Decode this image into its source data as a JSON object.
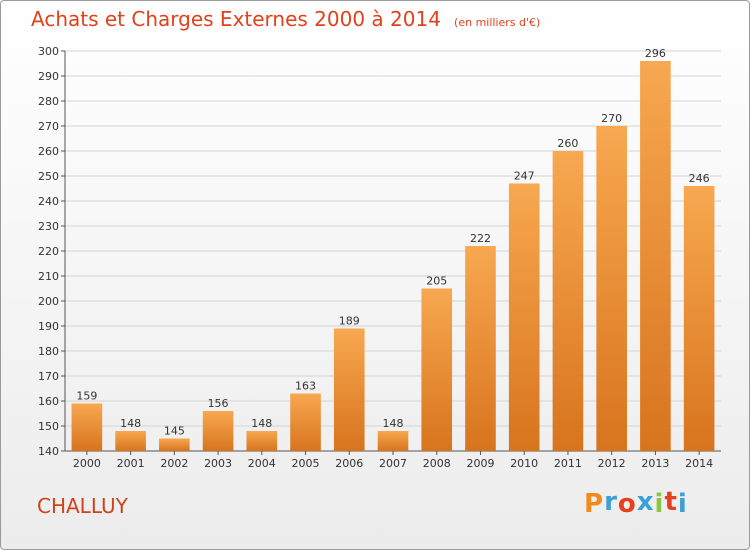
{
  "chart_data": {
    "type": "bar",
    "title": "Achats et Charges Externes 2000 à 2014",
    "subtitle": "(en milliers d'€)",
    "categories": [
      "2000",
      "2001",
      "2002",
      "2003",
      "2004",
      "2005",
      "2006",
      "2007",
      "2008",
      "2009",
      "2010",
      "2011",
      "2012",
      "2013",
      "2014"
    ],
    "values": [
      159,
      148,
      145,
      156,
      148,
      163,
      189,
      148,
      205,
      222,
      247,
      260,
      270,
      296,
      246
    ],
    "ylim": [
      140,
      300
    ],
    "ytick_step": 10,
    "grid": true,
    "bar_color_light": "#f7a850",
    "bar_color_dark": "#d8741e"
  },
  "place_name": "CHALLUY",
  "logo": {
    "text": "Proxiti",
    "colors": [
      "#f08a1c",
      "#3aa0d8",
      "#e8401c",
      "#3aa0d8",
      "#8cc63f",
      "#e8401c",
      "#3aa0d8"
    ]
  }
}
